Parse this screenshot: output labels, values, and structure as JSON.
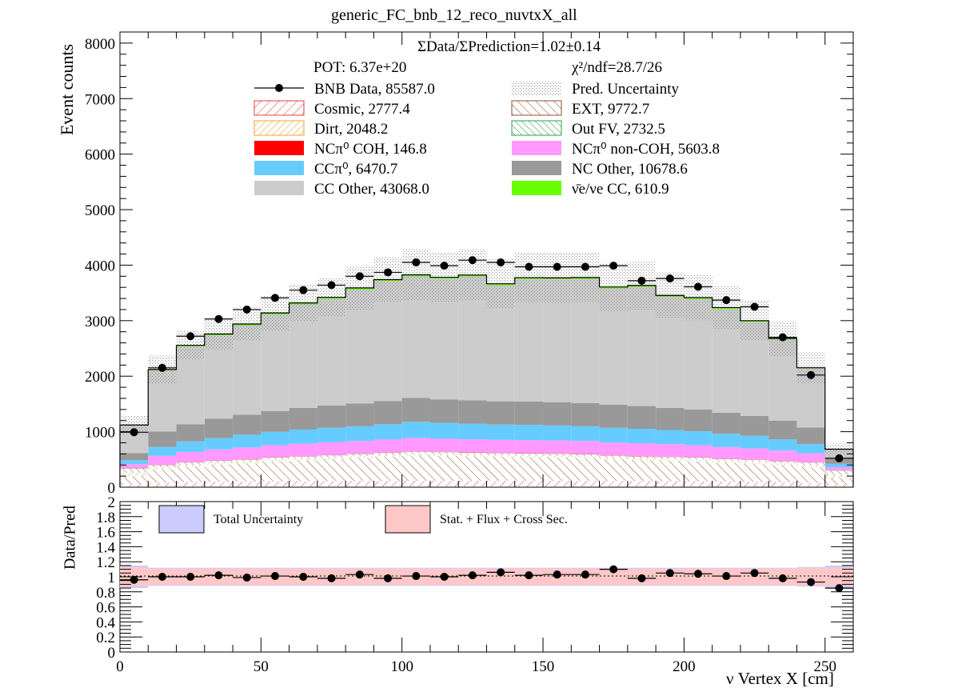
{
  "title": "generic_FC_bnb_12_reco_nuvtxX_all",
  "ratio_text": "ΣData/ΣPrediction=1.02±0.14",
  "pot_text": "POT: 6.37e+20",
  "chi2_text": "χ²/ndf=28.7/26",
  "colors": {
    "cosmic": "#e03c3c",
    "ext": "#8c5028",
    "dirt": "#f0a030",
    "outfv": "#2e9e48",
    "nc_pi0_coh": "#ff0000",
    "nc_pi0_noncoh": "#ff99ff",
    "cc_pi0": "#66ccff",
    "nc_other": "#999999",
    "cc_other": "#cccccc",
    "nue_cc": "#66ff00",
    "total_unc_band": "#ccccff",
    "syst_band": "#ffc8c8"
  },
  "legend": [
    {
      "key": "data",
      "text": "BNB Data, 85587.0",
      "style": "marker"
    },
    {
      "key": "unc",
      "text": "Pred. Uncertainty",
      "style": "dots"
    },
    {
      "key": "cosmic",
      "text": "Cosmic, 2777.4",
      "style": "hatch"
    },
    {
      "key": "ext",
      "text": "EXT, 9772.7",
      "style": "hatch"
    },
    {
      "key": "dirt",
      "text": "Dirt, 2048.2",
      "style": "hatch"
    },
    {
      "key": "outfv",
      "text": "Out FV, 2732.5",
      "style": "hatch"
    },
    {
      "key": "nc_pi0_coh",
      "text": "NCπ⁰ COH,  146.8",
      "style": "fill"
    },
    {
      "key": "nc_pi0_noncoh",
      "text": "NCπ⁰ non-COH,  5603.8",
      "style": "fill"
    },
    {
      "key": "cc_pi0",
      "text": "CCπ⁰, 6470.7",
      "style": "fill"
    },
    {
      "key": "nc_other",
      "text": "NC Other, 10678.6",
      "style": "fill"
    },
    {
      "key": "cc_other",
      "text": "CC Other, 43068.0",
      "style": "fill"
    },
    {
      "key": "nue_cc",
      "text": "ν̄e/νe CC, 610.9",
      "style": "fill"
    }
  ],
  "ratio_legend": [
    {
      "key": "total_unc_band",
      "text": "Total Uncertainty"
    },
    {
      "key": "syst_band",
      "text": "Stat. + Flux + Cross Sec."
    }
  ],
  "chart_data": [
    {
      "type": "bar",
      "stacked": true,
      "x_bin_edges": [
        0,
        10,
        20,
        30,
        40,
        50,
        60,
        70,
        80,
        90,
        100,
        110,
        120,
        130,
        140,
        150,
        160,
        170,
        180,
        190,
        200,
        210,
        220,
        230,
        240,
        250,
        260
      ],
      "xlim": [
        0,
        260
      ],
      "ylim": [
        0,
        8200
      ],
      "ylabel": "Event counts",
      "y_ticks": [
        0,
        1000,
        2000,
        3000,
        4000,
        5000,
        6000,
        7000,
        8000
      ],
      "series": [
        {
          "key": "cosmic",
          "name": "Cosmic, 2777.4",
          "values": [
            40,
            80,
            90,
            95,
            100,
            105,
            105,
            108,
            110,
            112,
            115,
            115,
            115,
            115,
            115,
            115,
            115,
            112,
            110,
            108,
            105,
            100,
            95,
            90,
            80,
            40
          ]
        },
        {
          "key": "ext",
          "name": "EXT, 9772.7",
          "values": [
            160,
            240,
            280,
            310,
            330,
            360,
            380,
            400,
            420,
            440,
            460,
            450,
            440,
            430,
            425,
            420,
            410,
            390,
            380,
            370,
            360,
            340,
            330,
            310,
            280,
            120
          ]
        },
        {
          "key": "dirt",
          "name": "Dirt, 2048.2",
          "values": [
            60,
            40,
            35,
            30,
            30,
            28,
            28,
            27,
            27,
            27,
            27,
            27,
            27,
            27,
            27,
            27,
            27,
            27,
            27,
            27,
            28,
            28,
            30,
            30,
            40,
            60
          ]
        },
        {
          "key": "outfv",
          "name": "Out FV, 2732.5",
          "values": [
            80,
            40,
            40,
            40,
            40,
            40,
            40,
            40,
            40,
            40,
            40,
            40,
            40,
            40,
            40,
            40,
            40,
            40,
            40,
            40,
            40,
            40,
            40,
            40,
            45,
            80
          ]
        },
        {
          "key": "nc_pi0_coh",
          "name": "NCπ⁰ COH,  146.8",
          "values": [
            5,
            5,
            5,
            5,
            5,
            5,
            5,
            5,
            5,
            5,
            5,
            5,
            5,
            5,
            5,
            5,
            5,
            5,
            5,
            5,
            5,
            5,
            5,
            5,
            5,
            5
          ]
        },
        {
          "key": "nc_pi0_noncoh",
          "name": "NCπ⁰ non-COH,  5603.8",
          "values": [
            70,
            160,
            185,
            200,
            210,
            220,
            225,
            230,
            230,
            235,
            240,
            235,
            235,
            235,
            235,
            235,
            235,
            230,
            230,
            225,
            220,
            210,
            200,
            185,
            160,
            55
          ]
        },
        {
          "key": "cc_pi0",
          "name": "CCπ⁰, 6470.7",
          "values": [
            70,
            160,
            190,
            205,
            230,
            240,
            255,
            260,
            265,
            275,
            290,
            285,
            280,
            275,
            275,
            270,
            265,
            265,
            260,
            255,
            250,
            240,
            225,
            200,
            165,
            60
          ]
        },
        {
          "key": "nc_other",
          "name": "NC Other, 10678.6",
          "values": [
            130,
            280,
            310,
            350,
            360,
            375,
            390,
            400,
            410,
            420,
            430,
            425,
            425,
            420,
            420,
            420,
            420,
            415,
            410,
            400,
            390,
            380,
            360,
            340,
            300,
            120
          ]
        },
        {
          "key": "cc_other",
          "name": "CC Other, 43068.0",
          "values": [
            500,
            1100,
            1400,
            1500,
            1610,
            1740,
            1865,
            1925,
            2055,
            2160,
            2190,
            2175,
            2230,
            2090,
            2208,
            2215,
            2233,
            2098,
            2148,
            2000,
            1992,
            1868,
            1695,
            1463,
            1065,
            140
          ]
        },
        {
          "key": "nue_cc",
          "name": "ν̄e/νe CC, 610.9",
          "values": [
            5,
            15,
            20,
            25,
            25,
            27,
            27,
            25,
            28,
            25,
            28,
            25,
            25,
            28,
            25,
            25,
            28,
            25,
            25,
            25,
            25,
            25,
            20,
            17,
            12,
            5
          ]
        }
      ],
      "uncertainty_frac": [
        0.15,
        0.12,
        0.1,
        0.1,
        0.1,
        0.1,
        0.1,
        0.1,
        0.11,
        0.11,
        0.12,
        0.12,
        0.12,
        0.12,
        0.12,
        0.12,
        0.12,
        0.12,
        0.12,
        0.12,
        0.12,
        0.12,
        0.12,
        0.12,
        0.13,
        0.15
      ],
      "data_name": "BNB Data, 85587.0",
      "data_x": [
        5,
        15,
        25,
        35,
        45,
        55,
        65,
        75,
        85,
        95,
        105,
        115,
        125,
        135,
        145,
        155,
        165,
        175,
        185,
        195,
        205,
        215,
        225,
        235,
        245,
        255
      ],
      "data_values": [
        990,
        2150,
        2720,
        3030,
        3200,
        3410,
        3550,
        3640,
        3800,
        3870,
        4050,
        3990,
        4090,
        4050,
        3970,
        3970,
        3970,
        3990,
        3720,
        3760,
        3610,
        3370,
        3250,
        2700,
        2020,
        520
      ]
    },
    {
      "type": "scatter",
      "xlabel": "ν Vertex X [cm]",
      "ylabel": "Data/Pred",
      "xlim": [
        0,
        260
      ],
      "ylim": [
        0,
        2
      ],
      "x_ticks": [
        0,
        50,
        100,
        150,
        200,
        250
      ],
      "y_ticks": [
        0,
        0.2,
        0.4,
        0.6,
        0.8,
        1,
        1.2,
        1.4,
        1.6,
        1.8,
        2
      ],
      "x": [
        5,
        15,
        25,
        35,
        45,
        55,
        65,
        75,
        85,
        95,
        105,
        115,
        125,
        135,
        145,
        155,
        165,
        175,
        185,
        195,
        205,
        215,
        225,
        235,
        245,
        255
      ],
      "ratio": [
        0.96,
        1.0,
        1.0,
        1.02,
        0.99,
        1.01,
        1.0,
        0.98,
        1.03,
        0.98,
        1.01,
        1.0,
        1.02,
        1.06,
        1.02,
        1.03,
        1.03,
        1.1,
        0.98,
        1.05,
        1.04,
        1.01,
        1.05,
        0.98,
        0.93,
        0.85
      ],
      "total_unc_frac": [
        0.15,
        0.12,
        0.12,
        0.12,
        0.12,
        0.12,
        0.12,
        0.12,
        0.12,
        0.12,
        0.12,
        0.12,
        0.12,
        0.12,
        0.12,
        0.12,
        0.12,
        0.12,
        0.12,
        0.12,
        0.12,
        0.12,
        0.12,
        0.12,
        0.13,
        0.15
      ],
      "syst_unc_frac": [
        0.13,
        0.11,
        0.11,
        0.11,
        0.11,
        0.11,
        0.11,
        0.11,
        0.11,
        0.11,
        0.11,
        0.11,
        0.11,
        0.11,
        0.11,
        0.11,
        0.11,
        0.11,
        0.11,
        0.11,
        0.11,
        0.11,
        0.11,
        0.11,
        0.12,
        0.12
      ]
    }
  ]
}
